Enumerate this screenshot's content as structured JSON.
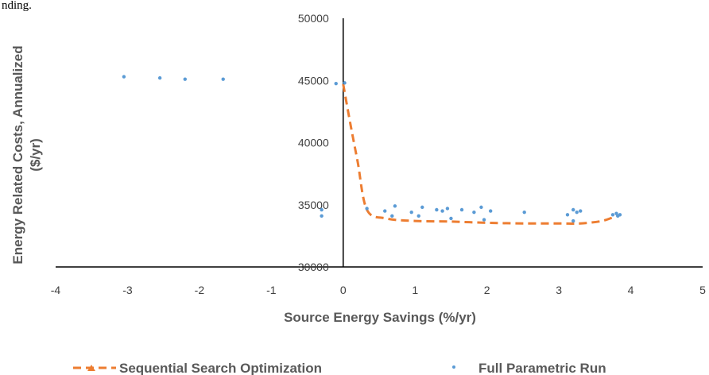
{
  "top_fragment": "nding.",
  "chart_data": {
    "type": "scatter",
    "title": "",
    "xlabel": "Source Energy Savings (%/yr)",
    "ylabel_lines": [
      "Energy Related Costs, Annualized",
      "($/yr)"
    ],
    "xlim": [
      -4,
      5
    ],
    "ylim": [
      30000,
      50000
    ],
    "x_ticks": [
      -4,
      -3,
      -2,
      -1,
      0,
      1,
      2,
      3,
      4,
      5
    ],
    "y_ticks": [
      30000,
      35000,
      40000,
      45000,
      50000
    ],
    "x_tick_labels": [
      "-4",
      "-3",
      "-2",
      "-1",
      "0",
      "1",
      "2",
      "3",
      "4",
      "5"
    ],
    "y_tick_labels": [
      "30000",
      "35000",
      "40000",
      "45000",
      "50000"
    ],
    "legend_position": "bottom",
    "colors": {
      "sequential": "#ED7D31",
      "parametric": "#5B9BD5"
    },
    "series": [
      {
        "name": "Sequential Search Optimization",
        "style": "dashed-line",
        "x": [
          0.0,
          0.1,
          0.2,
          0.33,
          0.6,
          1.0,
          1.5,
          2.0,
          2.5,
          3.0,
          3.3,
          3.6,
          3.8
        ],
        "y": [
          44700,
          41500,
          38500,
          34600,
          33900,
          33700,
          33650,
          33550,
          33500,
          33500,
          33500,
          33700,
          34100
        ]
      },
      {
        "name": "Full Parametric Run",
        "style": "markers",
        "x": [
          -3.05,
          -2.55,
          -2.2,
          -1.67,
          -0.1,
          0.02,
          -0.3,
          -0.3,
          0.33,
          0.58,
          0.68,
          0.72,
          0.95,
          1.05,
          1.1,
          1.3,
          1.38,
          1.45,
          1.5,
          1.65,
          1.82,
          1.92,
          1.96,
          2.05,
          2.52,
          3.12,
          3.2,
          3.25,
          3.3,
          3.2,
          3.75,
          3.8,
          3.85,
          3.82
        ],
        "y": [
          45300,
          45200,
          45100,
          45100,
          44750,
          44800,
          34600,
          34100,
          34700,
          34500,
          34100,
          34900,
          34400,
          34100,
          34800,
          34600,
          34500,
          34700,
          33900,
          34600,
          34400,
          34800,
          33800,
          34500,
          34400,
          34200,
          34600,
          34400,
          34500,
          33700,
          34200,
          34300,
          34200,
          34100
        ]
      }
    ]
  }
}
